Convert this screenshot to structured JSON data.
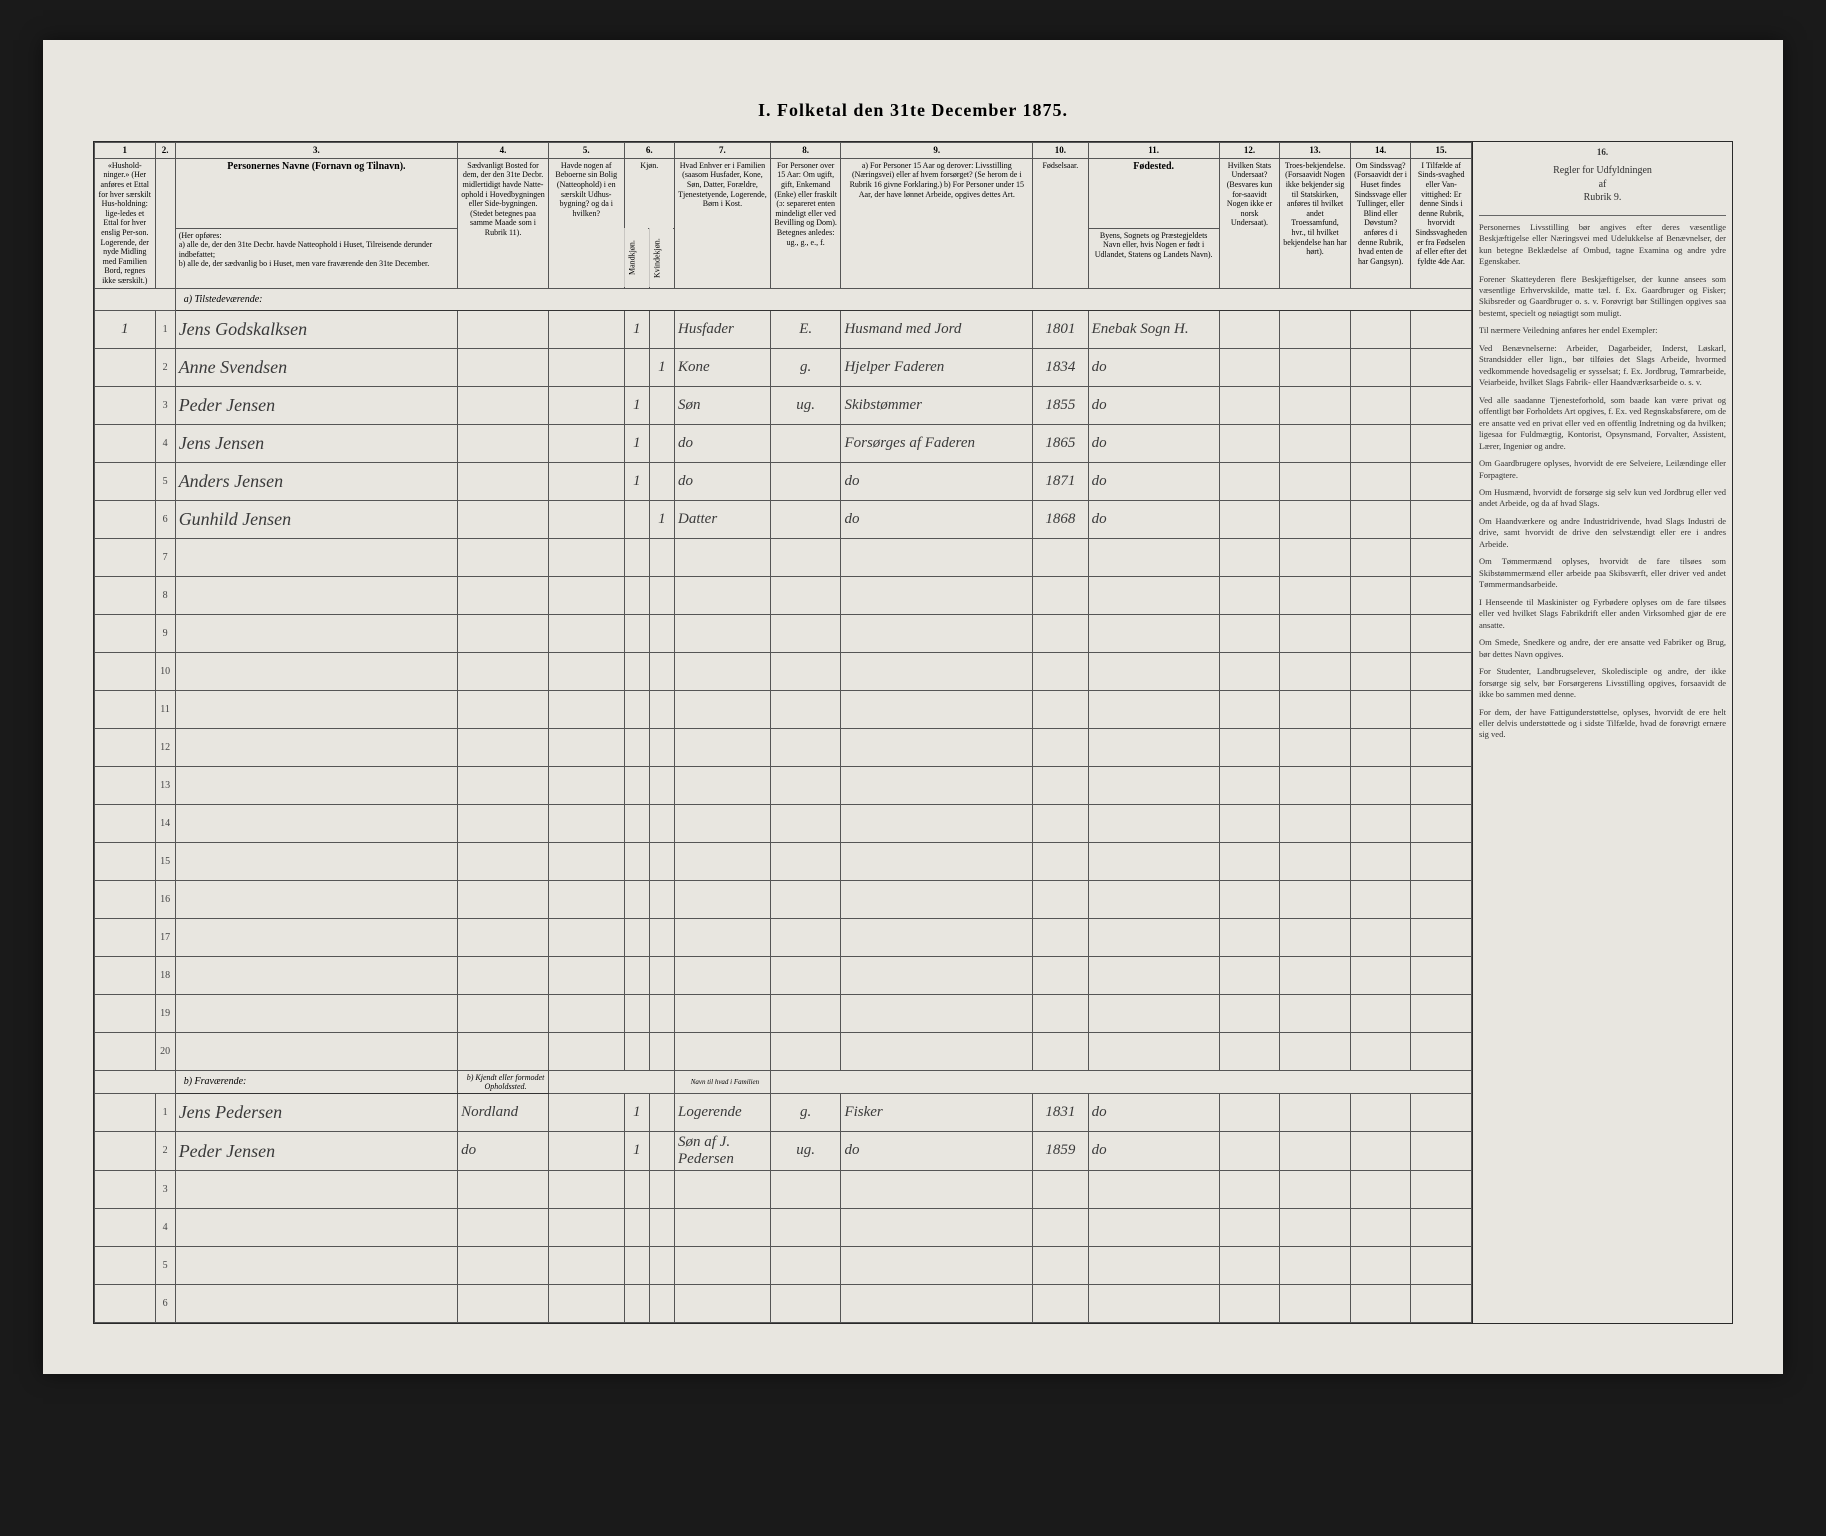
{
  "title": "I.  Folketal  den 31te December 1875.",
  "columns": {
    "nums": [
      "1",
      "2.",
      "3.",
      "4.",
      "5.",
      "6.",
      "7.",
      "8.",
      "9.",
      "10.",
      "11.",
      "12.",
      "13.",
      "14.",
      "15."
    ],
    "labels": {
      "c1": "«Hushold-ninger.» (Her anføres et Ettal for hver særskilt Hus-holdning: lige-ledes et Ettal for hver enslig Per-son. Logerende, der nyde Midling med Familien Bord, regnes ikke særskilt.)",
      "c2": "",
      "c3_head": "Personernes Navne (Fornavn og Tilnavn).",
      "c3_sub": "(Her opføres:\na) alle de, der den 31te Decbr. havde Natteophold i Huset, Tilreisende derunder indbefattet;\nb) alle de, der sædvanlig bo i Huset, men vare fraværende den 31te December.",
      "c4": "Sædvanligt Bosted for dem, der den 31te Decbr. midlertidigt havde Natte-ophold i Hovedbygningen eller Side-bygningen. (Stedet betegnes paa samme Maade som i Rubrik 11).",
      "c5": "Havde nogen af Beboerne sin Bolig (Natteophold) i en særskilt Udhus-bygning? og da i hvilken?",
      "c6_head": "Kjøn.",
      "c6a": "Mandkjøn.",
      "c6b": "Kvindekjøn.",
      "c7": "Hvad Enhver er i Familien (saasom Husfader, Kone, Søn, Datter, Forældre, Tjenestetyende, Logerende, Børn i Kost.",
      "c8": "For Personer over 15 Aar: Om ugift, gift, Enkemand (Enke) eller fraskilt (ɔ: separeret enten mindeligt eller ved Bevilling og Dom). Betegnes anledes: ug., g., e., f.",
      "c9": "a) For Personer 15 Aar og derover: Livsstilling (Næringsvei) eller af hvem forsørget? (Se herom de i Rubrik 16 givne Forklaring.)\nb) For Personer under 15 Aar, der have lønnet Arbeide, opgives dettes Art.",
      "c10": "Fødselsaar.",
      "c11_head": "Fødested.",
      "c11": "Byens, Sognets og Præstegjeldets Navn eller, hvis Nogen er født i Udlandet, Statens og Landets Navn).",
      "c12": "Hvilken Stats Undersaat? (Besvares kun for-saavidt Nogen ikke er norsk Undersaat).",
      "c13": "Troes-bekjendelse. (Forsaavidt Nogen ikke bekjender sig til Statskirken, anføres til hvilket andet Troessamfund, hvr., til hvilket bekjendelse han har hørt).",
      "c14": "Om Sindssvag? (Forsaavidt der i Huset findes Sindssvage eller Tullinger, eller Blind eller Døvstum? anføres d i denne Rubrik, hvad enten de har Gangsyn).",
      "c15": "I Tilfælde af Sinds-svaghed eller Van-vittighed: Er denne Sinds i denne Rubrik, hvorvidt Sindssvagheden er fra Fødselen af eller efter det fyldte 4de Aar."
    }
  },
  "sections": {
    "present": "a) Tilstedeværende:",
    "absent": "b) Fraværende:",
    "absent_loc": "b) Kjendt eller formodet Opholdssted."
  },
  "rows_present": [
    {
      "n": "1",
      "hh": "1",
      "name": "Jens Godskalksen",
      "c4": "",
      "c5": "",
      "m": "1",
      "f": "",
      "fam": "Husfader",
      "stat": "E.",
      "occ": "Husmand med Jord",
      "yr": "1801",
      "born": "Enebak Sogn H.",
      "u": "",
      "t": "",
      "s": "",
      "sv": ""
    },
    {
      "n": "2",
      "hh": "",
      "name": "Anne Svendsen",
      "c4": "",
      "c5": "",
      "m": "",
      "f": "1",
      "fam": "Kone",
      "stat": "g.",
      "occ": "Hjelper Faderen",
      "yr": "1834",
      "born": "do",
      "u": "",
      "t": "",
      "s": "",
      "sv": ""
    },
    {
      "n": "3",
      "hh": "",
      "name": "Peder Jensen",
      "c4": "",
      "c5": "",
      "m": "1",
      "f": "",
      "fam": "Søn",
      "stat": "ug.",
      "occ": "Skibstømmer",
      "yr": "1855",
      "born": "do",
      "u": "",
      "t": "",
      "s": "",
      "sv": ""
    },
    {
      "n": "4",
      "hh": "",
      "name": "Jens Jensen",
      "c4": "",
      "c5": "",
      "m": "1",
      "f": "",
      "fam": "do",
      "stat": "",
      "occ": "Forsørges af Faderen",
      "yr": "1865",
      "born": "do",
      "u": "",
      "t": "",
      "s": "",
      "sv": ""
    },
    {
      "n": "5",
      "hh": "",
      "name": "Anders Jensen",
      "c4": "",
      "c5": "",
      "m": "1",
      "f": "",
      "fam": "do",
      "stat": "",
      "occ": "do",
      "yr": "1871",
      "born": "do",
      "u": "",
      "t": "",
      "s": "",
      "sv": ""
    },
    {
      "n": "6",
      "hh": "",
      "name": "Gunhild Jensen",
      "c4": "",
      "c5": "",
      "m": "",
      "f": "1",
      "fam": "Datter",
      "stat": "",
      "occ": "do",
      "yr": "1868",
      "born": "do",
      "u": "",
      "t": "",
      "s": "",
      "sv": ""
    }
  ],
  "rows_present_empty": [
    "7",
    "8",
    "9",
    "10",
    "11",
    "12",
    "13",
    "14",
    "15",
    "16",
    "17",
    "18",
    "19",
    "20"
  ],
  "absent_header_note": "Navn til hvad i Familien",
  "rows_absent": [
    {
      "n": "1",
      "name": "Jens Pedersen",
      "loc": "Nordland",
      "m": "1",
      "f": "",
      "fam": "Logerende",
      "stat": "g.",
      "occ": "Fisker",
      "yr": "1831",
      "born": "do",
      "u": "",
      "t": "",
      "s": "",
      "sv": ""
    },
    {
      "n": "2",
      "name": "Peder Jensen",
      "loc": "do",
      "m": "1",
      "f": "",
      "fam": "Søn af J. Pedersen",
      "stat": "ug.",
      "occ": "do",
      "yr": "1859",
      "born": "do",
      "u": "",
      "t": "",
      "s": "",
      "sv": ""
    }
  ],
  "rows_absent_empty": [
    "3",
    "4",
    "5",
    "6"
  ],
  "rules": {
    "head": "Regler for Udfyldningen\naf\nRubrik 9.",
    "paras": [
      "Personernes Livsstilling bør angives efter deres væsentlige Beskjæftigelse eller Næringsvei med Udelukkelse af Benævnelser, der kun betegne Beklædelse af Ombud, tagne Examina og andre ydre Egenskaber.",
      "Forener Skatteyderen flere Beskjæftigelser, der kunne ansees som væsentlige Erhvervskilde, matte tæl. f. Ex. Gaardbruger og Fisker; Skibsreder og Gaardbruger o. s. v. Forøvrigt bør Stillingen opgives saa bestemt, specielt og nøiagtigt som muligt.",
      "Til nærmere Veiledning anføres her endel Exempler:",
      "Ved Benævnelserne: Arbeider, Dagarbeider, Inderst, Løskarl, Strandsidder eller lign., bør tilføies det Slags Arbeide, hvormed vedkommende hovedsagelig er sysselsat; f. Ex. Jordbrug, Tømrarbeide, Veiarbeide, hvilket Slags Fabrik- eller Haandværksarbeide o. s. v.",
      "Ved alle saadanne Tjenesteforhold, som baade kan være privat og offentligt bør Forholdets Art opgives, f. Ex. ved Regnskabsførere, om de ere ansatte ved en privat eller ved en offentlig Indretning og da hvilken; ligesaa for Fuldmægtig, Kontorist, Opsynsmand, Forvalter, Assistent, Lærer, Ingeniør og andre.",
      "Om Gaardbrugere oplyses, hvorvidt de ere Selveiere, Leilændinge eller Forpagtere.",
      "Om Husmænd, hvorvidt de forsørge sig selv kun ved Jordbrug eller ved andet Arbeide, og da af hvad Slags.",
      "Om Haandværkere og andre Industridrivende, hvad Slags Industri de drive, samt hvorvidt de drive den selvstændigt eller ere i andres Arbeide.",
      "Om Tømmermænd oplyses, hvorvidt de fare tilsøes som Skibstømmermænd eller arbeide paa Skibsværft, eller driver ved andet Tømmermandsarbeide.",
      "I Henseende til Maskinister og Fyrbødere oplyses om de fare tilsøes eller ved hvilket Slags Fabrikdrift eller anden Virksomhed gjør de ere ansatte.",
      "Om Smede, Snedkere og andre, der ere ansatte ved Fabriker og Brug, bør dettes Navn opgives.",
      "For Studenter, Landbrugselever, Skoledisciple og andre, der ikke forsørge sig selv, bør Forsørgerens Livsstilling opgives, forsaavidt de ikke bo sammen med denne.",
      "For dem, der have Fattigunderstøttelse, oplyses, hvorvidt de ere helt eller delvis understøttede og i sidste Tilfælde, hvad de forøvrigt ernære sig ved."
    ]
  },
  "col_widths": {
    "c1": 60,
    "c2": 20,
    "c3": 280,
    "c4": 90,
    "c5": 75,
    "c6a": 25,
    "c6b": 25,
    "c7": 95,
    "c8": 70,
    "c9": 190,
    "c10": 55,
    "c11": 130,
    "c12": 60,
    "c13": 70,
    "c14": 60,
    "c15": 60
  }
}
